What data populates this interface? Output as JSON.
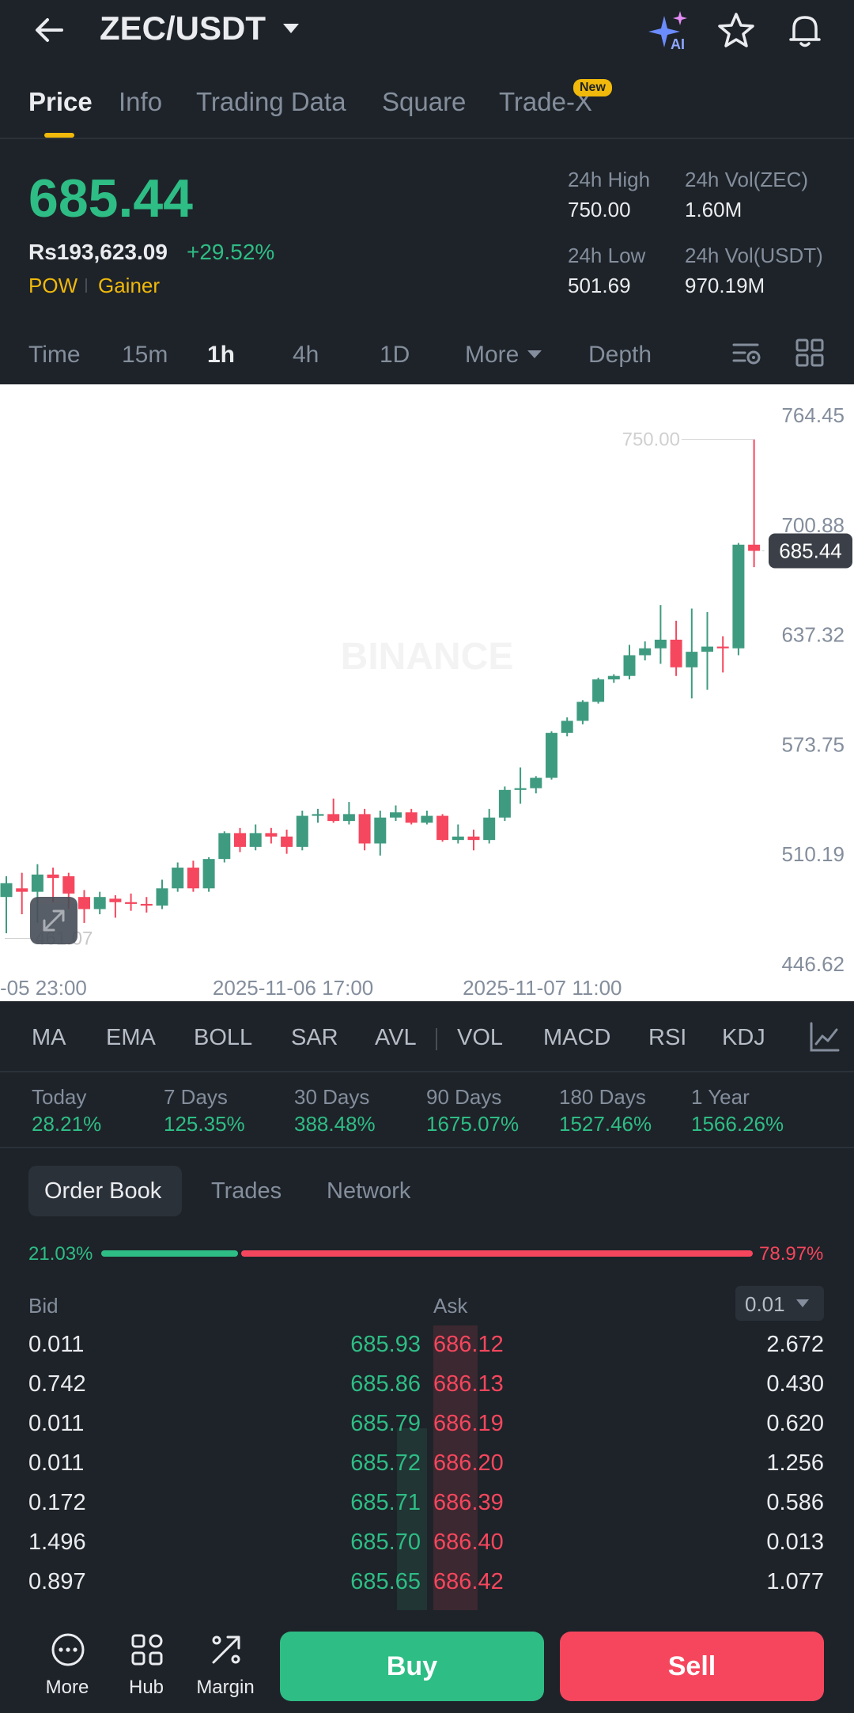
{
  "header": {
    "pair": "ZEC/USDT",
    "icons": [
      "back-arrow-icon",
      "chevron-down-icon",
      "ai-sparkle-icon",
      "star-icon",
      "bell-icon"
    ]
  },
  "tabs": [
    {
      "label": "Price",
      "active": true
    },
    {
      "label": "Info"
    },
    {
      "label": "Trading Data"
    },
    {
      "label": "Square"
    },
    {
      "label": "Trade-X",
      "badge": "New"
    }
  ],
  "price": {
    "last": "685.44",
    "fiat": "Rs193,623.09",
    "change": "+29.52%",
    "tags": [
      "POW",
      "Gainer"
    ]
  },
  "stats": {
    "high_label": "24h High",
    "high_value": "750.00",
    "low_label": "24h Low",
    "low_value": "501.69",
    "vol_base_label": "24h Vol(ZEC)",
    "vol_base_value": "1.60M",
    "vol_quote_label": "24h Vol(USDT)",
    "vol_quote_value": "970.19M"
  },
  "intervals": [
    "Time",
    "15m",
    "1h",
    "4h",
    "1D",
    "More",
    "Depth"
  ],
  "active_interval": "1h",
  "chart": {
    "y_ticks": [
      "764.45",
      "700.88",
      "637.32",
      "573.75",
      "510.19",
      "446.62"
    ],
    "x_ticks": [
      "-05 23:00",
      "2025-11-06 17:00",
      "2025-11-07 11:00"
    ],
    "high_marker": "750.00",
    "low_marker": "461.07",
    "last_price_tag": "685.44",
    "watermark": "BINANCE"
  },
  "chart_data": {
    "type": "candlestick",
    "interval": "1h",
    "ylim": [
      446.62,
      764.45
    ],
    "y_ticks": [
      764.45,
      700.88,
      637.32,
      573.75,
      510.19,
      446.62
    ],
    "x_ticks": [
      "-05 23:00",
      "2025-11-06 17:00",
      "2025-11-07 11:00"
    ],
    "candles": [
      {
        "o": 485,
        "h": 497,
        "l": 464,
        "c": 493
      },
      {
        "o": 490,
        "h": 499,
        "l": 475,
        "c": 488
      },
      {
        "o": 488,
        "h": 504,
        "l": 470,
        "c": 498
      },
      {
        "o": 498,
        "h": 502,
        "l": 482,
        "c": 496
      },
      {
        "o": 497,
        "h": 499,
        "l": 478,
        "c": 487
      },
      {
        "o": 485,
        "h": 489,
        "l": 470,
        "c": 478
      },
      {
        "o": 478,
        "h": 488,
        "l": 475,
        "c": 485
      },
      {
        "o": 484,
        "h": 486,
        "l": 473,
        "c": 482
      },
      {
        "o": 482,
        "h": 487,
        "l": 477,
        "c": 481
      },
      {
        "o": 481,
        "h": 485,
        "l": 476,
        "c": 480
      },
      {
        "o": 480,
        "h": 495,
        "l": 478,
        "c": 490
      },
      {
        "o": 490,
        "h": 505,
        "l": 488,
        "c": 502
      },
      {
        "o": 502,
        "h": 506,
        "l": 488,
        "c": 490
      },
      {
        "o": 490,
        "h": 508,
        "l": 488,
        "c": 507
      },
      {
        "o": 507,
        "h": 523,
        "l": 505,
        "c": 522
      },
      {
        "o": 522,
        "h": 525,
        "l": 511,
        "c": 514
      },
      {
        "o": 514,
        "h": 527,
        "l": 512,
        "c": 522
      },
      {
        "o": 522,
        "h": 525,
        "l": 516,
        "c": 520
      },
      {
        "o": 520,
        "h": 524,
        "l": 510,
        "c": 514
      },
      {
        "o": 514,
        "h": 535,
        "l": 512,
        "c": 532
      },
      {
        "o": 532,
        "h": 536,
        "l": 528,
        "c": 533
      },
      {
        "o": 533,
        "h": 542,
        "l": 528,
        "c": 529
      },
      {
        "o": 529,
        "h": 540,
        "l": 527,
        "c": 533
      },
      {
        "o": 533,
        "h": 536,
        "l": 512,
        "c": 516
      },
      {
        "o": 516,
        "h": 535,
        "l": 509,
        "c": 531
      },
      {
        "o": 531,
        "h": 538,
        "l": 529,
        "c": 534
      },
      {
        "o": 534,
        "h": 536,
        "l": 527,
        "c": 528
      },
      {
        "o": 528,
        "h": 535,
        "l": 527,
        "c": 532
      },
      {
        "o": 532,
        "h": 533,
        "l": 517,
        "c": 518
      },
      {
        "o": 518,
        "h": 527,
        "l": 516,
        "c": 520
      },
      {
        "o": 520,
        "h": 524,
        "l": 512,
        "c": 518
      },
      {
        "o": 518,
        "h": 536,
        "l": 516,
        "c": 531
      },
      {
        "o": 531,
        "h": 549,
        "l": 529,
        "c": 547
      },
      {
        "o": 547,
        "h": 560,
        "l": 539,
        "c": 548
      },
      {
        "o": 548,
        "h": 555,
        "l": 545,
        "c": 554
      },
      {
        "o": 554,
        "h": 581,
        "l": 553,
        "c": 580
      },
      {
        "o": 580,
        "h": 589,
        "l": 578,
        "c": 587
      },
      {
        "o": 587,
        "h": 599,
        "l": 585,
        "c": 598
      },
      {
        "o": 598,
        "h": 612,
        "l": 597,
        "c": 611
      },
      {
        "o": 611,
        "h": 614,
        "l": 609,
        "c": 613
      },
      {
        "o": 613,
        "h": 631,
        "l": 611,
        "c": 625
      },
      {
        "o": 625,
        "h": 633,
        "l": 622,
        "c": 629
      },
      {
        "o": 629,
        "h": 654,
        "l": 620,
        "c": 634
      },
      {
        "o": 634,
        "h": 645,
        "l": 613,
        "c": 618
      },
      {
        "o": 618,
        "h": 652,
        "l": 600,
        "c": 627
      },
      {
        "o": 627,
        "h": 650,
        "l": 605,
        "c": 630
      },
      {
        "o": 630,
        "h": 636,
        "l": 615,
        "c": 629
      },
      {
        "o": 629,
        "h": 690,
        "l": 625,
        "c": 689
      },
      {
        "o": 689,
        "h": 750,
        "l": 676,
        "c": 685.44
      }
    ]
  },
  "indicators": [
    "MA",
    "EMA",
    "BOLL",
    "SAR",
    "AVL",
    "VOL",
    "MACD",
    "RSI",
    "KDJ"
  ],
  "performance": [
    {
      "label": "Today",
      "value": "28.21%"
    },
    {
      "label": "7 Days",
      "value": "125.35%"
    },
    {
      "label": "30 Days",
      "value": "388.48%"
    },
    {
      "label": "90 Days",
      "value": "1675.07%"
    },
    {
      "label": "180 Days",
      "value": "1527.46%"
    },
    {
      "label": "1 Year",
      "value": "1566.26%"
    }
  ],
  "orderbook_tabs": [
    {
      "label": "Order Book",
      "active": true
    },
    {
      "label": "Trades"
    },
    {
      "label": "Network"
    }
  ],
  "ratio": {
    "bid": "21.03%",
    "ask": "78.97%",
    "bid_fraction": 0.2103
  },
  "book": {
    "bid_label": "Bid",
    "ask_label": "Ask",
    "precision": "0.01",
    "rows": [
      {
        "bid_qty": "0.011",
        "bid_price": "685.93",
        "ask_price": "686.12",
        "ask_qty": "2.672"
      },
      {
        "bid_qty": "0.742",
        "bid_price": "685.86",
        "ask_price": "686.13",
        "ask_qty": "0.430"
      },
      {
        "bid_qty": "0.011",
        "bid_price": "685.79",
        "ask_price": "686.19",
        "ask_qty": "0.620"
      },
      {
        "bid_qty": "0.011",
        "bid_price": "685.72",
        "ask_price": "686.20",
        "ask_qty": "1.256"
      },
      {
        "bid_qty": "0.172",
        "bid_price": "685.71",
        "ask_price": "686.39",
        "ask_qty": "0.586"
      },
      {
        "bid_qty": "1.496",
        "bid_price": "685.70",
        "ask_price": "686.40",
        "ask_qty": "0.013"
      },
      {
        "bid_qty": "0.897",
        "bid_price": "685.65",
        "ask_price": "686.42",
        "ask_qty": "1.077"
      }
    ]
  },
  "bottom_nav": [
    {
      "label": "More",
      "icon": "more-dots-icon"
    },
    {
      "label": "Hub",
      "icon": "hub-grid-icon"
    },
    {
      "label": "Margin",
      "icon": "margin-icon"
    }
  ],
  "actions": {
    "buy": "Buy",
    "sell": "Sell"
  },
  "colors": {
    "background": "#1e2329",
    "up": "#2ebd85",
    "down": "#f6465d",
    "accent": "#f0b90b",
    "chart_up": "#3f9b80",
    "chart_down": "#f5475e"
  }
}
